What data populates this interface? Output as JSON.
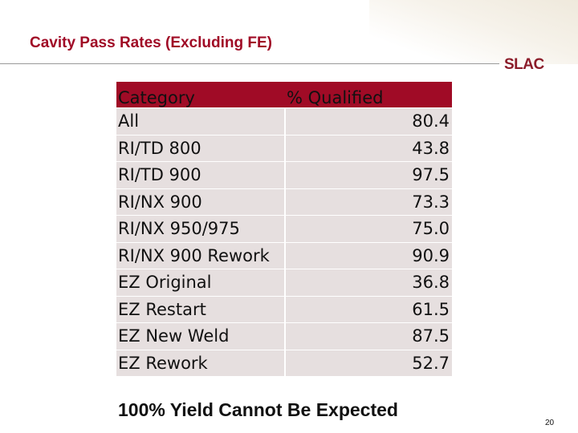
{
  "slide": {
    "title": "Cavity Pass Rates (Excluding FE)",
    "logo_text": "SLAC",
    "footer_note": "100% Yield Cannot Be Expected",
    "page_number": "20"
  },
  "colors": {
    "accent": "#a00b26",
    "row_fill": "#e6dfdf",
    "logo": "#8c1d2a"
  },
  "table": {
    "headers": [
      "Category",
      "% Qualified"
    ],
    "rows": [
      {
        "category": "All",
        "value": "80.4"
      },
      {
        "category": "RI/TD 800",
        "value": "43.8"
      },
      {
        "category": "RI/TD 900",
        "value": "97.5"
      },
      {
        "category": "RI/NX 900",
        "value": "73.3"
      },
      {
        "category": "RI/NX 950/975",
        "value": "75.0"
      },
      {
        "category": "RI/NX 900 Rework",
        "value": "90.9"
      },
      {
        "category": "EZ Original",
        "value": "36.8"
      },
      {
        "category": "EZ Restart",
        "value": "61.5"
      },
      {
        "category": "EZ New Weld",
        "value": "87.5"
      },
      {
        "category": "EZ Rework",
        "value": "52.7"
      }
    ]
  }
}
